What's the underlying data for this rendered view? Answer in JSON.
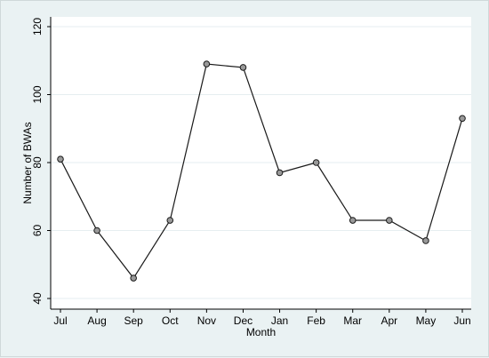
{
  "chart_data": {
    "type": "line",
    "title": "",
    "xlabel": "Month",
    "ylabel": "Number of BWAs",
    "categories": [
      "Jul",
      "Aug",
      "Sep",
      "Oct",
      "Nov",
      "Dec",
      "Jan",
      "Feb",
      "Mar",
      "Apr",
      "May",
      "Jun"
    ],
    "values": [
      81,
      60,
      46,
      63,
      109,
      108,
      77,
      80,
      63,
      63,
      57,
      93
    ],
    "ylim": [
      40,
      120
    ],
    "yticks": [
      "40",
      "60",
      "80",
      "100",
      "120"
    ],
    "grid": "horizontal",
    "legend": "none",
    "colors": {
      "background": "#eaf2f3",
      "plot_area": "#ffffff",
      "line": "#1a1a1a",
      "marker_fill": "#999999",
      "marker_stroke": "#1a1a1a",
      "grid": "#e6eef0"
    }
  }
}
